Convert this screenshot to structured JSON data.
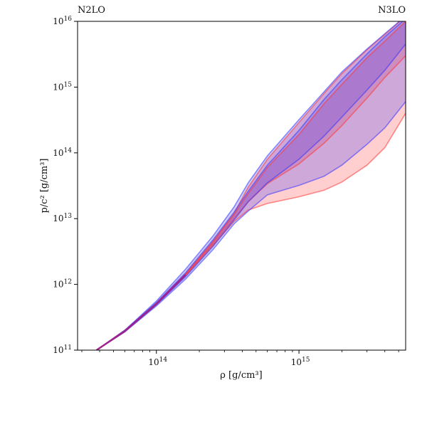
{
  "chart_data": {
    "type": "area",
    "title": "",
    "xlabel": "ρ [g/cm³]",
    "ylabel": "p/c² [g/cm³]",
    "xscale": "log",
    "yscale": "log",
    "xlim": [
      28000000000000.0,
      5600000000000000.0
    ],
    "ylim": [
      100000000000.0,
      1e+16
    ],
    "xticks": [
      {
        "value": 100000000000000.0,
        "base": "10",
        "exp": "14"
      },
      {
        "value": 1000000000000000.0,
        "base": "10",
        "exp": "15"
      }
    ],
    "yticks": [
      {
        "value": 100000000000.0,
        "base": "10",
        "exp": "11"
      },
      {
        "value": 1000000000000.0,
        "base": "10",
        "exp": "12"
      },
      {
        "value": 10000000000000.0,
        "base": "10",
        "exp": "13"
      },
      {
        "value": 100000000000000.0,
        "base": "10",
        "exp": "14"
      },
      {
        "value": 1000000000000000.0,
        "base": "10",
        "exp": "15"
      },
      {
        "value": 1e+16,
        "base": "10",
        "exp": "16"
      }
    ],
    "legend_placement": "top, above plot (left and right)",
    "series": [
      {
        "name": "N3LO",
        "color": "#ff3333",
        "x": [
          38000000000000.0,
          60000000000000.0,
          100000000000000.0,
          160000000000000.0,
          250000000000000.0,
          350000000000000.0,
          440000000000000.0,
          600000000000000.0,
          1000000000000000.0,
          1500000000000000.0,
          2000000000000000.0,
          3000000000000000.0,
          4000000000000000.0,
          5600000000000000.0
        ],
        "outer_upper": [
          100000000000.0,
          200000000000.0,
          520000000000.0,
          1450000000000.0,
          4600000000000.0,
          12000000000000.0,
          30000000000000.0,
          80000000000000.0,
          290000000000000.0,
          800000000000000.0,
          1600000000000000.0,
          3700000000000000.0,
          6300000000000000.0,
          1.2e+16
        ],
        "outer_lower": [
          100000000000.0,
          190000000000.0,
          490000000000.0,
          1350000000000.0,
          3900000000000.0,
          9000000000000.0,
          13500000000000.0,
          17000000000000.0,
          21500000000000.0,
          27000000000000.0,
          36000000000000.0,
          65000000000000.0,
          120000000000000.0,
          400000000000000.0
        ],
        "inner_upper": [
          100000000000.0,
          200000000000.0,
          510000000000.0,
          1420000000000.0,
          4400000000000.0,
          11500000000000.0,
          24000000000000.0,
          60000000000000.0,
          190000000000000.0,
          560000000000000.0,
          1100000000000000.0,
          2800000000000000.0,
          5000000000000000.0,
          1e+16
        ],
        "inner_lower": [
          100000000000.0,
          190000000000.0,
          500000000000.0,
          1380000000000.0,
          4100000000000.0,
          10000000000000.0,
          18000000000000.0,
          34000000000000.0,
          68000000000000.0,
          140000000000000.0,
          260000000000000.0,
          680000000000000.0,
          1400000000000000.0,
          3000000000000000.0
        ]
      },
      {
        "name": "N2LO",
        "color": "#3333ff",
        "x": [
          38000000000000.0,
          60000000000000.0,
          100000000000000.0,
          160000000000000.0,
          250000000000000.0,
          350000000000000.0,
          440000000000000.0,
          600000000000000.0,
          1000000000000000.0,
          1500000000000000.0,
          2000000000000000.0,
          3000000000000000.0,
          4000000000000000.0,
          5600000000000000.0
        ],
        "outer_upper": [
          100000000000.0,
          200000000000.0,
          560000000000.0,
          1700000000000.0,
          5500000000000.0,
          15000000000000.0,
          35000000000000.0,
          90000000000000.0,
          320000000000000.0,
          850000000000000.0,
          1700000000000000.0,
          3800000000000000.0,
          6500000000000000.0,
          1.2e+16
        ],
        "outer_lower": [
          100000000000.0,
          190000000000.0,
          470000000000.0,
          1200000000000.0,
          3400000000000.0,
          8300000000000.0,
          13000000000000.0,
          23000000000000.0,
          32000000000000.0,
          44000000000000.0,
          65000000000000.0,
          135000000000000.0,
          240000000000000.0,
          600000000000000.0
        ],
        "inner_upper": [
          100000000000.0,
          200000000000.0,
          530000000000.0,
          1500000000000.0,
          4800000000000.0,
          12500000000000.0,
          26000000000000.0,
          65000000000000.0,
          220000000000000.0,
          650000000000000.0,
          1300000000000000.0,
          3200000000000000.0,
          5800000000000000.0,
          1.1e+16
        ],
        "inner_lower": [
          100000000000.0,
          190000000000.0,
          490000000000.0,
          1300000000000.0,
          3800000000000.0,
          9500000000000.0,
          18000000000000.0,
          35000000000000.0,
          80000000000000.0,
          180000000000000.0,
          350000000000000.0,
          900000000000000.0,
          1800000000000000.0,
          4500000000000000.0
        ]
      }
    ],
    "overlap_color": "#a0228c"
  },
  "legend": {
    "left_label": "N2LO",
    "left_color": "#2222ee",
    "right_label": "N3LO",
    "right_color": "#ee1111"
  }
}
